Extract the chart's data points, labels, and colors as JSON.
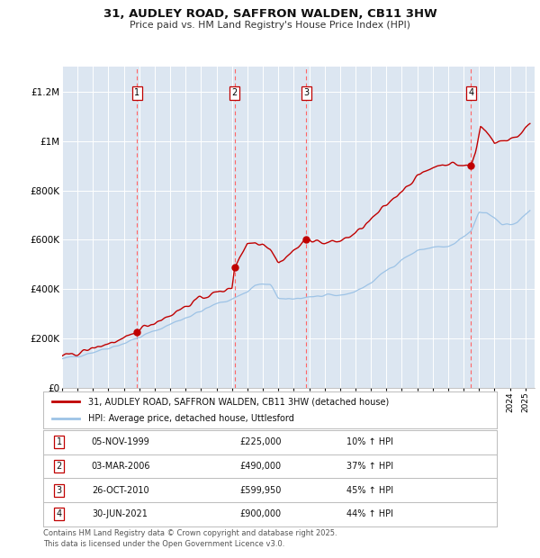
{
  "title": "31, AUDLEY ROAD, SAFFRON WALDEN, CB11 3HW",
  "subtitle": "Price paid vs. HM Land Registry's House Price Index (HPI)",
  "background_color": "#dce6f1",
  "plot_bg_color": "#dce6f1",
  "red_line_color": "#c00000",
  "blue_line_color": "#9dc3e6",
  "marker_color": "#c00000",
  "vline_color_red": "#ff6666",
  "ylim": [
    0,
    1300000
  ],
  "yticks": [
    0,
    200000,
    400000,
    600000,
    800000,
    1000000,
    1200000
  ],
  "ytick_labels": [
    "£0",
    "£200K",
    "£400K",
    "£600K",
    "£800K",
    "£1M",
    "£1.2M"
  ],
  "x_start_year": 1995,
  "x_end_year": 2025,
  "sales": [
    {
      "num": 1,
      "date_dec": 1999.85,
      "price": 225000,
      "label": "05-NOV-1999",
      "pct": "10%",
      "dir": "↑"
    },
    {
      "num": 2,
      "date_dec": 2006.17,
      "price": 490000,
      "label": "03-MAR-2006",
      "pct": "37%",
      "dir": "↑"
    },
    {
      "num": 3,
      "date_dec": 2010.82,
      "price": 599950,
      "label": "26-OCT-2010",
      "pct": "45%",
      "dir": "↑"
    },
    {
      "num": 4,
      "date_dec": 2021.49,
      "price": 900000,
      "label": "30-JUN-2021",
      "pct": "44%",
      "dir": "↑"
    }
  ],
  "legend_red": "31, AUDLEY ROAD, SAFFRON WALDEN, CB11 3HW (detached house)",
  "legend_blue": "HPI: Average price, detached house, Uttlesford",
  "footer": "Contains HM Land Registry data © Crown copyright and database right 2025.\nThis data is licensed under the Open Government Licence v3.0."
}
